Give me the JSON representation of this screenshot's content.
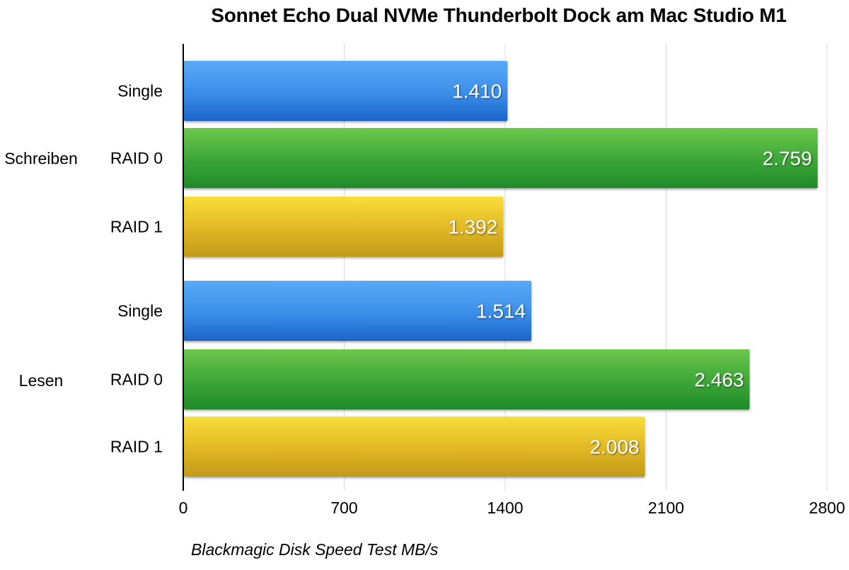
{
  "chart_data": {
    "type": "bar",
    "orientation": "horizontal",
    "title": "Sonnet Echo Dual NVMe Thunderbolt Dock am Mac Studio M1",
    "xlabel": "Blackmagic Disk Speed Test MB/s",
    "ylabel": "",
    "xlim": [
      0,
      2800
    ],
    "xticks": [
      0,
      700,
      1400,
      2100,
      2800
    ],
    "grid": true,
    "groups": [
      {
        "name": "Schreiben",
        "bars": [
          {
            "label": "Single",
            "value": 1410,
            "value_label": "1.410",
            "color": "#3d8ce8"
          },
          {
            "label": "RAID 0",
            "value": 2759,
            "value_label": "2.759",
            "color": "#3aa235"
          },
          {
            "label": "RAID 1",
            "value": 1392,
            "value_label": "1.392",
            "color": "#e2b51f"
          }
        ]
      },
      {
        "name": "Lesen",
        "bars": [
          {
            "label": "Single",
            "value": 1514,
            "value_label": "1.514",
            "color": "#3d8ce8"
          },
          {
            "label": "RAID 0",
            "value": 2463,
            "value_label": "2.463",
            "color": "#3aa235"
          },
          {
            "label": "RAID 1",
            "value": 2008,
            "value_label": "2.008",
            "color": "#e2b51f"
          }
        ]
      }
    ]
  }
}
